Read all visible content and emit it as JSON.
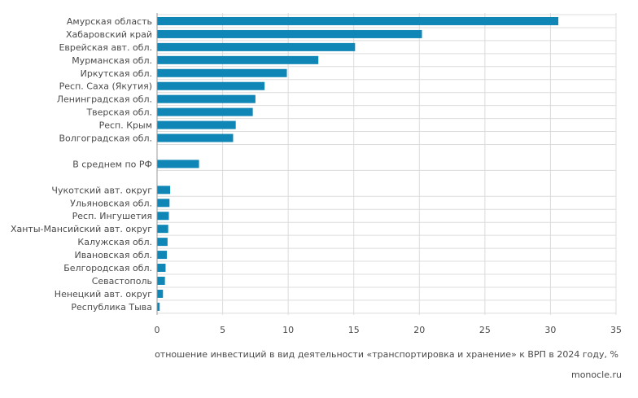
{
  "chart_data": {
    "type": "bar",
    "orientation": "horizontal",
    "categories": [
      "Амурская область",
      "Хабаровский край",
      "Еврейская авт. обл.",
      "Мурманская обл.",
      "Иркутская обл.",
      "Респ. Саха (Якутия)",
      "Ленинградская обл.",
      "Тверская обл.",
      "Респ. Крым",
      "Волгоградская обл.",
      "",
      "В среднем по РФ",
      "",
      "Чукотский авт. округ",
      "Ульяновская обл.",
      "Респ. Ингушетия",
      "Ханты-Мансийский авт. округ",
      "Калужская обл.",
      "Ивановская обл.",
      "Белгородская обл.",
      "Севастополь",
      "Ненецкий авт. округ",
      "Республика Тыва"
    ],
    "values": [
      30.6,
      20.2,
      15.1,
      12.3,
      9.9,
      8.2,
      7.5,
      7.3,
      6.0,
      5.8,
      null,
      3.2,
      null,
      1.0,
      0.95,
      0.9,
      0.85,
      0.8,
      0.75,
      0.65,
      0.6,
      0.45,
      0.2
    ],
    "xlim": [
      0,
      35
    ],
    "xticks": [
      0,
      5,
      10,
      15,
      20,
      25,
      30,
      35
    ],
    "xlabel": "отношение инвестиций в вид деятельности «транспортировка и хранение» к ВРП в 2024 году, %",
    "grid": "vertical",
    "bar_color": "#0f86b6",
    "grid_color": "#dcdcdc"
  },
  "source": "monocle.ru"
}
